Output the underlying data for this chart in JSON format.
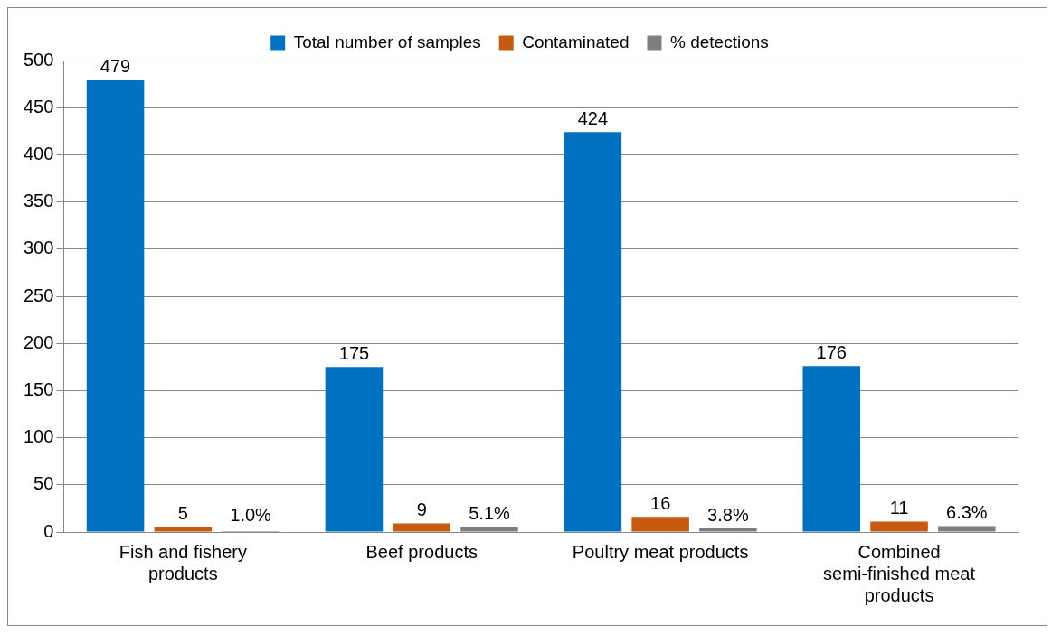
{
  "chart_data": {
    "type": "bar",
    "categories": [
      "Fish and fishery products",
      "Beef products",
      "Poultry meat products",
      "Combined semi-finished meat products"
    ],
    "series": [
      {
        "name": "Total number of samples",
        "color": "#0070c0",
        "values": [
          479,
          175,
          424,
          176
        ],
        "value_labels": [
          "479",
          "175",
          "424",
          "176"
        ]
      },
      {
        "name": "Contaminated",
        "color": "#c55a11",
        "values": [
          5,
          9,
          16,
          11
        ],
        "value_labels": [
          "5",
          "9",
          "16",
          "11"
        ]
      },
      {
        "name": "% detections",
        "color": "#7f7f7f",
        "values": [
          1.0,
          5.1,
          3.8,
          6.3
        ],
        "value_labels": [
          "1.0%",
          "5.1%",
          "3.8%",
          "6.3%"
        ]
      }
    ],
    "ylim": [
      0,
      500
    ],
    "yticks": [
      0,
      50,
      100,
      150,
      200,
      250,
      300,
      350,
      400,
      450,
      500
    ],
    "grid": "y",
    "legend": "top"
  }
}
